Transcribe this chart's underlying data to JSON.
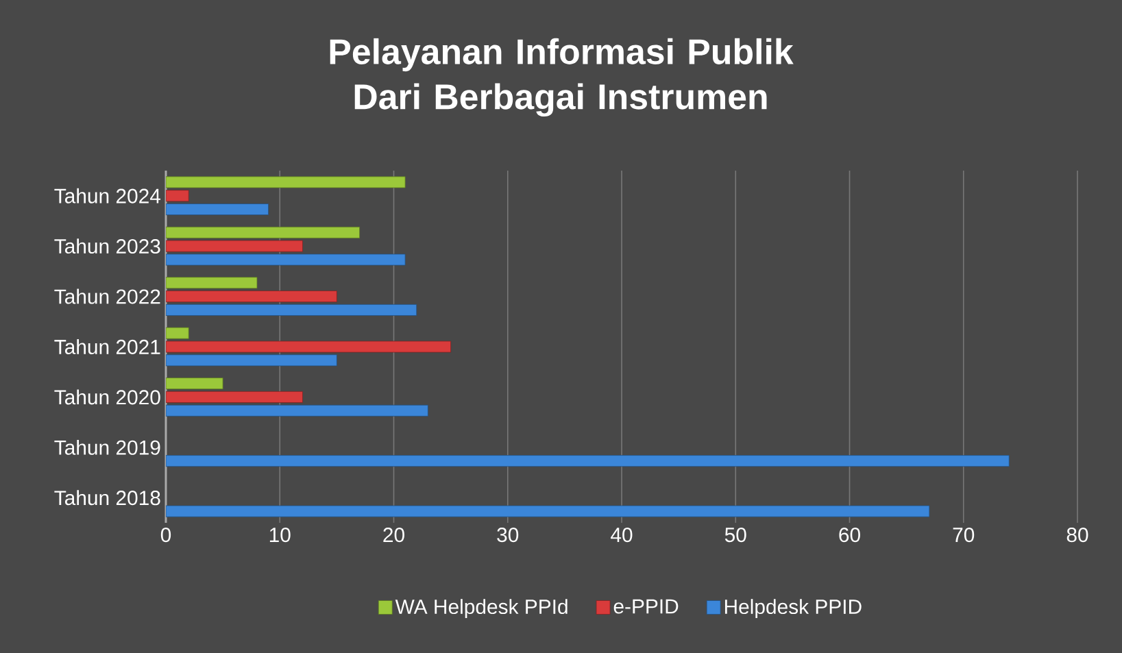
{
  "chart_data": {
    "type": "bar",
    "orientation": "horizontal",
    "title": "Pelayanan Informasi Publik Dari Berbagai Instrumen",
    "categories": [
      "Tahun 2024",
      "Tahun 2023",
      "Tahun 2022",
      "Tahun 2021",
      "Tahun 2020",
      "Tahun 2019",
      "Tahun 2018"
    ],
    "series": [
      {
        "name": "WA Helpdesk PPId",
        "color": "#9bc83a",
        "values": [
          21,
          17,
          8,
          2,
          5,
          null,
          null
        ]
      },
      {
        "name": "e-PPID",
        "color": "#d93b3b",
        "values": [
          2,
          12,
          15,
          25,
          12,
          null,
          null
        ]
      },
      {
        "name": "Helpdesk PPID",
        "color": "#3b86d9",
        "values": [
          9,
          21,
          22,
          15,
          23,
          74,
          67
        ]
      }
    ],
    "xlim": [
      0,
      80
    ],
    "xticks": [
      0,
      10,
      20,
      30,
      40,
      50,
      60,
      70,
      80
    ],
    "grid": "x",
    "legend": "bottom"
  }
}
